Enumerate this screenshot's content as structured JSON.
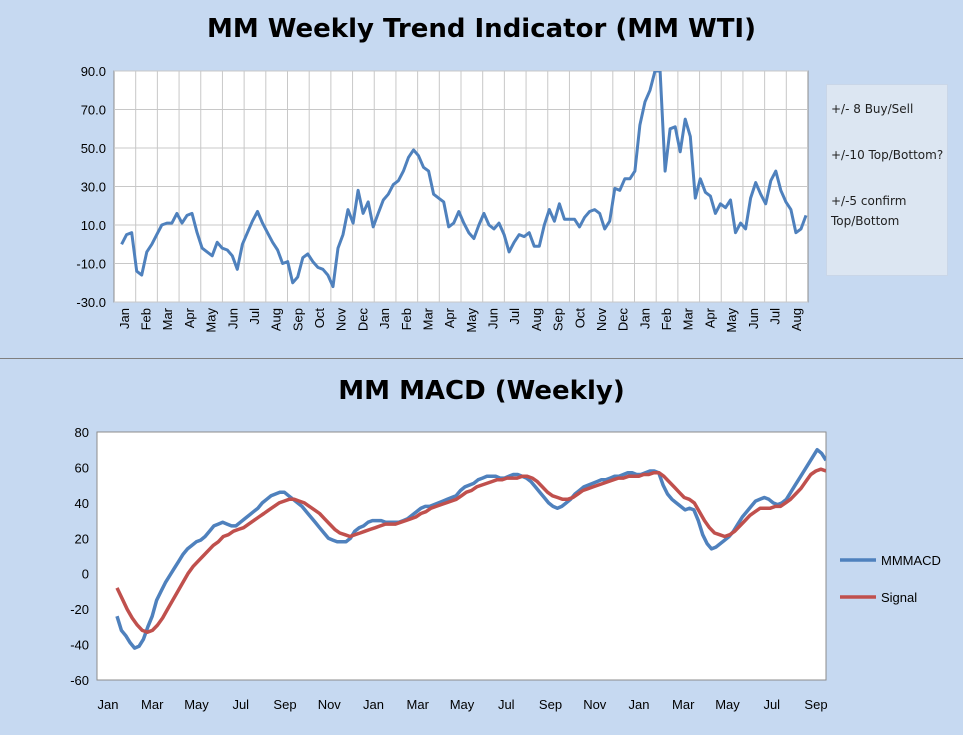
{
  "chart_data": [
    {
      "type": "line",
      "title": "MM Weekly Trend Indicator (MM WTI)",
      "ylim": [
        -30,
        90
      ],
      "yticks": [
        "90.0",
        "70.0",
        "50.0",
        "30.0",
        "10.0",
        "-10.0",
        "-30.0"
      ],
      "xticks": [
        "Jan",
        "Feb",
        "Mar",
        "Apr",
        "May",
        "Jun",
        "Jul",
        "Aug",
        "Sep",
        "Oct",
        "Nov",
        "Dec",
        "Jan",
        "Feb",
        "Mar",
        "Apr",
        "May",
        "Jun",
        "Jul",
        "Aug",
        "Sep",
        "Oct",
        "Nov",
        "Dec",
        "Jan",
        "Feb",
        "Mar",
        "Apr",
        "May",
        "Jun",
        "Jul",
        "Aug"
      ],
      "grid": true,
      "series": [
        {
          "color": "#4f81bd",
          "values": [
            0,
            5,
            6,
            -14,
            -16,
            -4,
            0,
            5,
            10,
            11,
            11,
            16,
            11,
            15,
            16,
            6,
            -2,
            -4,
            -6,
            1,
            -2,
            -3,
            -6,
            -13,
            0,
            6,
            12,
            17,
            11,
            6,
            1,
            -3,
            -10,
            -9,
            -20,
            -17,
            -7,
            -5,
            -9,
            -12,
            -13,
            -16,
            -22,
            -2,
            5,
            18,
            11,
            28,
            16,
            22,
            9,
            16,
            23,
            26,
            31,
            33,
            38,
            45,
            49,
            46,
            40,
            38,
            26,
            24,
            22,
            9,
            11,
            17,
            11,
            6,
            3,
            10,
            16,
            10,
            8,
            11,
            5,
            -4,
            1,
            5,
            4,
            6,
            -1,
            -1,
            10,
            18,
            12,
            21,
            13,
            13,
            13,
            9,
            14,
            17,
            18,
            16,
            8,
            12,
            29,
            28,
            34,
            34,
            38,
            62,
            74,
            80,
            90,
            90,
            38,
            60,
            61,
            48,
            65,
            56,
            24,
            34,
            27,
            25,
            16,
            21,
            19,
            23,
            6,
            11,
            8,
            24,
            32,
            26,
            21,
            33,
            38,
            28,
            22,
            18,
            6,
            8,
            15
          ]
        }
      ],
      "notes": [
        "+/- 8 Buy/Sell",
        "+/-10 Top/Bottom?",
        "+/-5 confirm Top/Bottom"
      ]
    },
    {
      "type": "line",
      "title": "MM MACD (Weekly)",
      "ylim": [
        -60,
        80
      ],
      "yticks": [
        "80",
        "60",
        "40",
        "20",
        "0",
        "-20",
        "-40",
        "-60"
      ],
      "xticks": [
        "Jan",
        "Mar",
        "May",
        "Jul",
        "Sep",
        "Nov",
        "Jan",
        "Mar",
        "May",
        "Jul",
        "Sep",
        "Nov",
        "Jan",
        "Mar",
        "May",
        "Jul",
        "Sep"
      ],
      "grid": false,
      "legend": "right",
      "series": [
        {
          "name": "MMMACD",
          "color": "#4f81bd",
          "values": [
            -24,
            -32,
            -35,
            -39,
            -42,
            -41,
            -37,
            -30,
            -24,
            -15,
            -10,
            -5,
            -1,
            3,
            7,
            11,
            14,
            16,
            18,
            19,
            21,
            24,
            27,
            28,
            29,
            28,
            27,
            27,
            29,
            31,
            33,
            35,
            37,
            40,
            42,
            44,
            45,
            46,
            46,
            44,
            42,
            40,
            38,
            35,
            32,
            29,
            26,
            23,
            20,
            19,
            18,
            18,
            18,
            20,
            24,
            26,
            27,
            29,
            30,
            30,
            30,
            29,
            29,
            29,
            29,
            30,
            31,
            33,
            35,
            37,
            38,
            38,
            39,
            40,
            41,
            42,
            43,
            44,
            47,
            49,
            50,
            51,
            53,
            54,
            55,
            55,
            55,
            54,
            54,
            55,
            56,
            56,
            55,
            54,
            52,
            49,
            46,
            43,
            40,
            38,
            37,
            38,
            40,
            42,
            45,
            47,
            49,
            50,
            51,
            52,
            53,
            53,
            54,
            55,
            55,
            56,
            57,
            57,
            56,
            56,
            57,
            58,
            58,
            57,
            50,
            45,
            42,
            40,
            38,
            36,
            37,
            36,
            30,
            22,
            17,
            14,
            15,
            17,
            19,
            21,
            24,
            28,
            32,
            35,
            38,
            41,
            42,
            43,
            42,
            40,
            39,
            40,
            42,
            46,
            50,
            54,
            58,
            62,
            66,
            70,
            68,
            64
          ]
        },
        {
          "name": "Signal",
          "color": "#c0504d",
          "values": [
            -8,
            -14,
            -20,
            -25,
            -29,
            -32,
            -33,
            -32,
            -29,
            -25,
            -20,
            -15,
            -10,
            -5,
            0,
            4,
            7,
            10,
            13,
            16,
            18,
            21,
            22,
            24,
            25,
            26,
            28,
            30,
            32,
            34,
            36,
            38,
            40,
            41,
            42,
            42,
            41,
            40,
            38,
            36,
            34,
            31,
            28,
            25,
            23,
            22,
            21,
            22,
            23,
            24,
            25,
            26,
            27,
            28,
            28,
            28,
            29,
            30,
            31,
            32,
            34,
            35,
            37,
            38,
            39,
            40,
            41,
            42,
            44,
            46,
            47,
            49,
            50,
            51,
            52,
            53,
            53,
            54,
            54,
            54,
            55,
            55,
            54,
            52,
            49,
            46,
            44,
            43,
            42,
            42,
            43,
            45,
            47,
            48,
            49,
            50,
            51,
            52,
            53,
            54,
            54,
            55,
            55,
            55,
            56,
            56,
            57,
            57,
            55,
            52,
            49,
            46,
            43,
            42,
            40,
            35,
            30,
            26,
            23,
            22,
            21,
            22,
            24,
            27,
            30,
            33,
            35,
            37,
            37,
            37,
            38,
            38,
            40,
            42,
            45,
            48,
            52,
            56,
            58,
            59,
            58
          ]
        }
      ]
    }
  ]
}
